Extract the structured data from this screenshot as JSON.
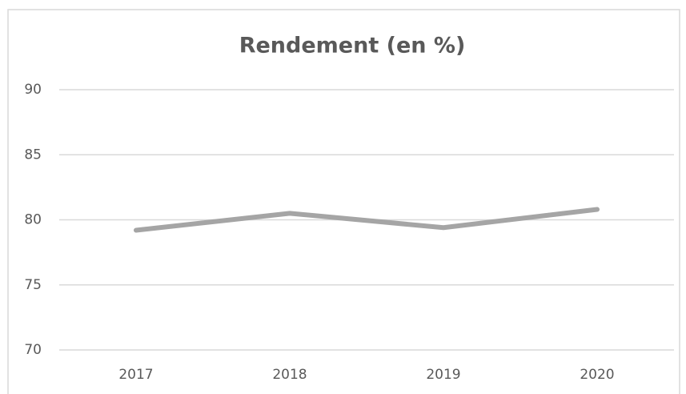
{
  "chart_data": {
    "type": "line",
    "title": "Rendement  (en %)",
    "categories": [
      "2017",
      "2018",
      "2019",
      "2020"
    ],
    "series": [
      {
        "name": "Rendement",
        "color": "#a5a5a5",
        "values": [
          79.2,
          80.5,
          79.4,
          80.8
        ]
      }
    ],
    "ylim": [
      70,
      90
    ],
    "yticks": [
      70,
      75,
      80,
      85,
      90
    ],
    "grid": true
  }
}
